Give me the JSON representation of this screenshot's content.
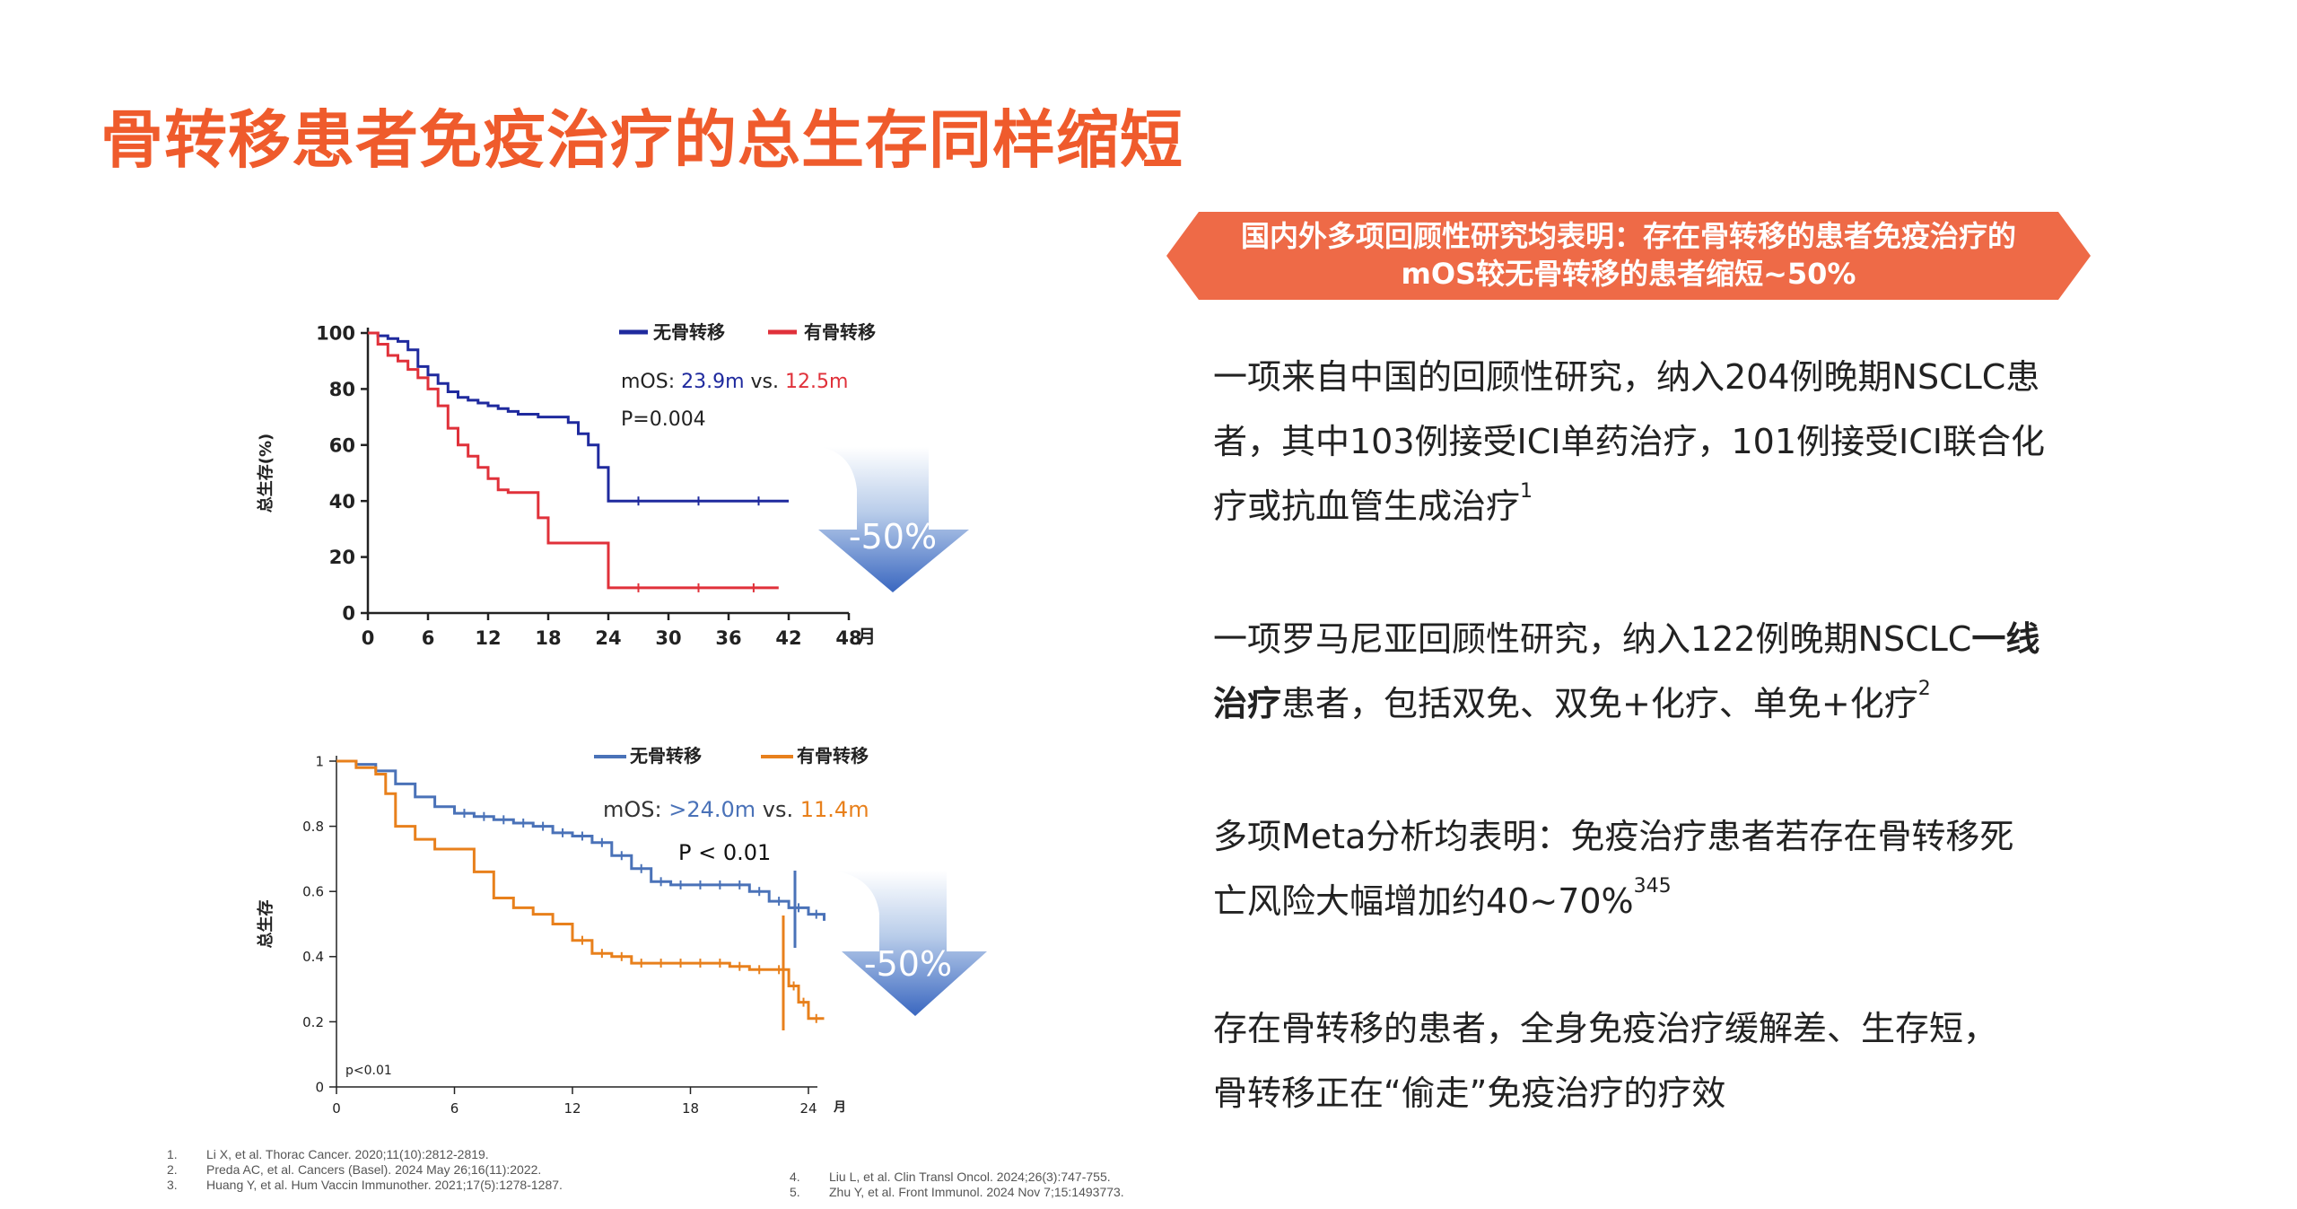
{
  "title": "骨转移患者免疫治疗的总生存同样缩短",
  "banner": {
    "line1": "国内外多项回顾性研究均表明：存在骨转移的患者免疫治疗的",
    "line2": "mOS较无骨转移的患者缩短~50%"
  },
  "bullets": {
    "b1_l1": "一项来自中国的回顾性研究，纳入204例晚期NSCLC患",
    "b1_l2": "者，其中103例接受ICI单药治疗，101例接受ICI联合化",
    "b1_l3": "疗或抗血管生成治疗",
    "b1_sup": "1",
    "b2_l1a": "一项罗马尼亚回顾性研究，纳入122例晚期NSCLC",
    "b2_l1b": "一线",
    "b2_l2a": "治疗",
    "b2_l2b": "患者，包括双免、双免+化疗、单免+化疗",
    "b2_sup": "2",
    "b3_l1": "多项Meta分析均表明：免疫治疗患者若存在骨转移死",
    "b3_l2": "亡风险大幅增加约40~70%",
    "b3_sup": "345",
    "b4_l1": "存在骨转移的患者，全身免疫治疗缓解差、生存短，",
    "b4_l2": "骨转移正在“偷走”免疫治疗的疗效"
  },
  "references": [
    {
      "num": "1.",
      "text": "Li X, et al. Thorac Cancer. 2020;11(10):2812-2819."
    },
    {
      "num": "2.",
      "text": "Preda AC, et al. Cancers (Basel). 2024 May 26;16(11):2022."
    },
    {
      "num": "3.",
      "text": "Huang Y, et al. Hum Vaccin Immunother. 2021;17(5):1278-1287."
    },
    {
      "num": "4.",
      "text": "Liu L, et al. Clin Transl Oncol. 2024;26(3):747-755."
    },
    {
      "num": "5.",
      "text": "Zhu Y, et al. Front Immunol. 2024 Nov 7;15:1493773."
    }
  ],
  "colors": {
    "title": "#ef5b2c",
    "banner": "#ee6a47",
    "chart1_no_bone": "#1f2a9e",
    "chart1_bone": "#e0313a",
    "chart2_no_bone": "#4a72b8",
    "chart2_bone": "#e8801c"
  },
  "chart_data": [
    {
      "type": "line",
      "ylabel": "总生存(%)",
      "xunit": "月",
      "xlim": [
        0,
        48
      ],
      "ylim": [
        0,
        100
      ],
      "x_ticks": [
        0,
        6,
        12,
        18,
        24,
        30,
        36,
        42,
        48
      ],
      "y_ticks": [
        0,
        20,
        40,
        60,
        80,
        100
      ],
      "legend": [
        "无骨转移",
        "有骨转移"
      ],
      "annotation": {
        "mos_label": "mOS:",
        "mos_no_bone": "23.9m",
        "vs": "vs.",
        "mos_bone": "12.5m",
        "p": "P=0.004"
      },
      "arrow_label": "-50%",
      "series": [
        {
          "name": "无骨转移",
          "color": "#1f2a9e",
          "x": [
            0,
            1,
            2,
            3,
            4,
            5,
            6,
            7,
            8,
            9,
            10,
            11,
            12,
            13,
            14,
            15,
            16,
            17,
            18,
            19,
            20,
            21,
            22,
            23,
            24,
            30,
            36,
            42
          ],
          "y": [
            100,
            99,
            98,
            97,
            94,
            88,
            85,
            82,
            79,
            77,
            76,
            75,
            74,
            73,
            72,
            71,
            71,
            70,
            70,
            70,
            68,
            64,
            60,
            52,
            40,
            40,
            40,
            40
          ]
        },
        {
          "name": "有骨转移",
          "color": "#e0313a",
          "x": [
            0,
            1,
            2,
            3,
            4,
            5,
            6,
            7,
            8,
            9,
            10,
            11,
            12,
            13,
            14,
            15,
            16,
            17,
            18,
            19,
            20,
            21,
            22,
            23,
            24,
            30,
            36,
            41
          ],
          "y": [
            100,
            96,
            92,
            90,
            87,
            84,
            80,
            74,
            66,
            60,
            56,
            52,
            48,
            44,
            43,
            43,
            43,
            34,
            25,
            25,
            25,
            25,
            25,
            25,
            9,
            9,
            9,
            9
          ]
        }
      ]
    },
    {
      "type": "line",
      "ylabel": "总生存",
      "xunit": "月",
      "xlim": [
        0,
        24
      ],
      "ylim": [
        0,
        1
      ],
      "x_ticks": [
        0,
        6,
        12,
        18,
        24
      ],
      "y_ticks": [
        0,
        0.2,
        0.4,
        0.6,
        0.8,
        1
      ],
      "legend": [
        "无骨转移",
        "有骨转移"
      ],
      "annotation": {
        "mos_label": "mOS:",
        "mos_no_bone": ">24.0m",
        "vs": "vs.",
        "mos_bone": "11.4m",
        "p": "P < 0.01",
        "p_corner": "p<0.01"
      },
      "arrow_label": "-50%",
      "series": [
        {
          "name": "无骨转移",
          "color": "#4a72b8",
          "x": [
            0,
            1,
            2,
            3,
            4,
            5,
            6,
            7,
            8,
            9,
            10,
            11,
            12,
            13,
            14,
            15,
            16,
            17,
            18,
            19,
            20,
            21,
            22,
            23,
            24,
            24.8
          ],
          "y": [
            1,
            0.99,
            0.97,
            0.93,
            0.89,
            0.86,
            0.84,
            0.83,
            0.82,
            0.81,
            0.8,
            0.78,
            0.77,
            0.75,
            0.71,
            0.67,
            0.63,
            0.62,
            0.62,
            0.62,
            0.62,
            0.6,
            0.57,
            0.55,
            0.53,
            0.51
          ]
        },
        {
          "name": "有骨转移",
          "color": "#e8801c",
          "x": [
            0,
            1,
            2,
            2.5,
            3,
            4,
            5,
            6,
            7,
            8,
            9,
            10,
            11,
            12,
            13,
            14,
            15,
            16,
            17,
            18,
            19,
            20,
            21,
            22,
            23,
            23.5,
            24,
            24.8
          ],
          "y": [
            1,
            0.98,
            0.96,
            0.9,
            0.8,
            0.76,
            0.73,
            0.73,
            0.66,
            0.58,
            0.55,
            0.53,
            0.5,
            0.45,
            0.41,
            0.4,
            0.38,
            0.38,
            0.38,
            0.38,
            0.38,
            0.37,
            0.36,
            0.36,
            0.31,
            0.26,
            0.21,
            0.21
          ]
        }
      ]
    }
  ]
}
